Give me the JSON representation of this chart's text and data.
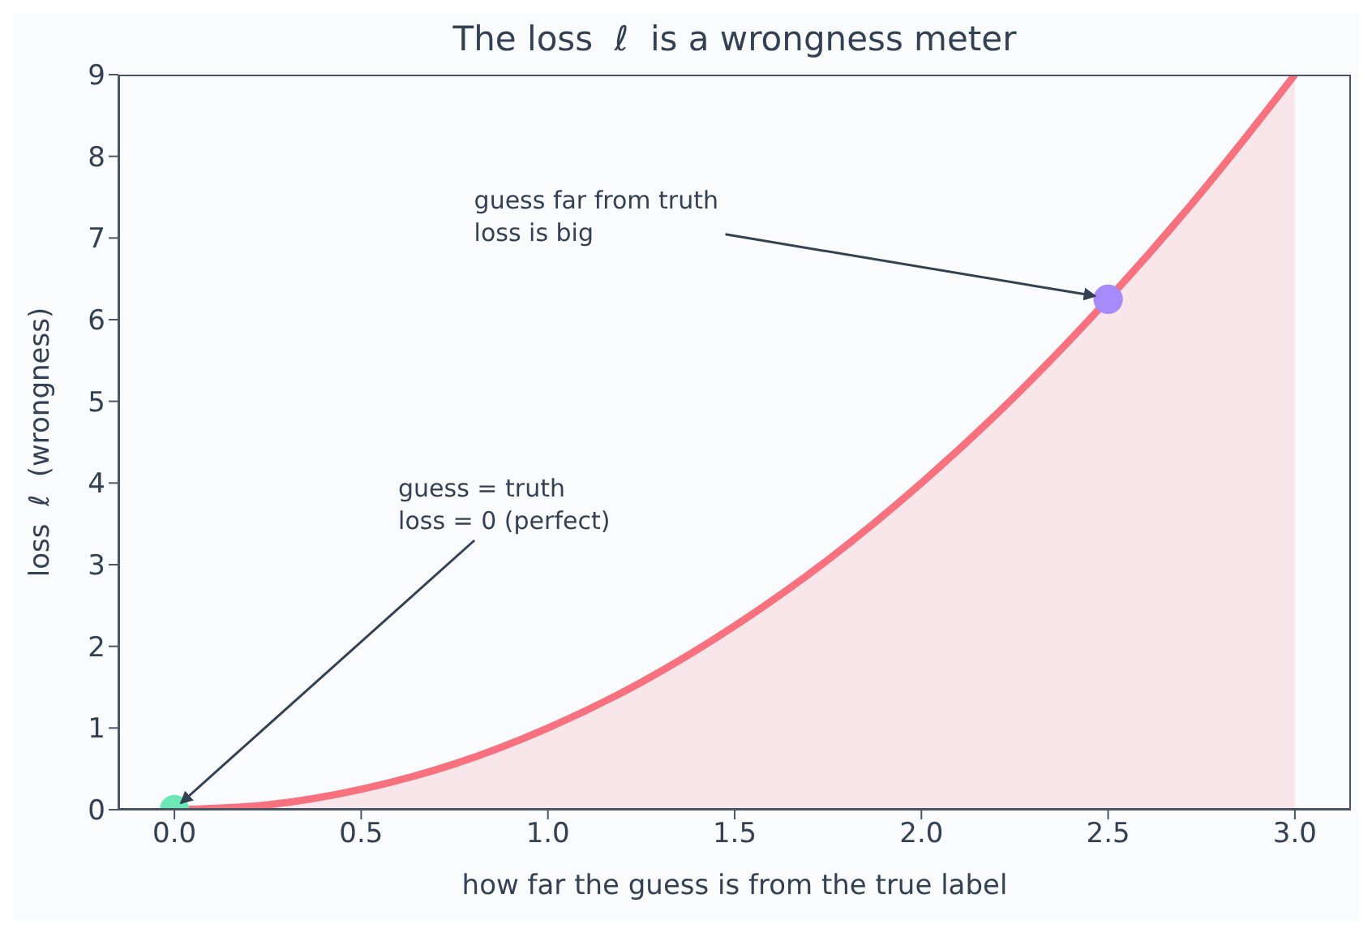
{
  "chart_data": {
    "type": "area",
    "title": "The loss  ℓ  is a wrongness meter",
    "xlabel": "how far the guess is from the true label",
    "ylabel": "loss  ℓ  (wrongness)",
    "xlim": [
      -0.15,
      3.15
    ],
    "xticks": [
      {
        "value": 0,
        "label": "0.0"
      },
      {
        "value": 0.5,
        "label": "0.5"
      },
      {
        "value": 1,
        "label": "1.0"
      },
      {
        "value": 1.5,
        "label": "1.5"
      },
      {
        "value": 2,
        "label": "2.0"
      },
      {
        "value": 2.5,
        "label": "2.5"
      },
      {
        "value": 3,
        "label": "3.0"
      }
    ],
    "ylim": [
      0,
      9
    ],
    "yticks": [
      0,
      1,
      2,
      3,
      4,
      5,
      6,
      7,
      8,
      9
    ],
    "grid": false,
    "legend": false,
    "series": [
      {
        "color": "#f7717f",
        "x": [
          0,
          0.25,
          0.5,
          0.75,
          1,
          1.25,
          1.5,
          1.75,
          2,
          2.25,
          2.5,
          2.75,
          3
        ],
        "values": [
          0,
          0.06,
          0.25,
          0.56,
          1,
          1.56,
          2.25,
          3.06,
          4,
          5.06,
          6.25,
          7.56,
          9
        ]
      },
      {
        "type": "scatter",
        "color": "#6ee7b7",
        "x": [
          0
        ],
        "values": [
          0
        ]
      },
      {
        "type": "scatter",
        "color": "#a78bfa",
        "x": [
          2.5
        ],
        "values": [
          6.25
        ]
      }
    ],
    "annotations": [
      {
        "text": "guess = truth\nloss = 0 (perfect)",
        "x": 0,
        "y": 0
      },
      {
        "text": "guess far from truth\nloss is big",
        "x": 2.5,
        "y": 6.25
      }
    ]
  }
}
